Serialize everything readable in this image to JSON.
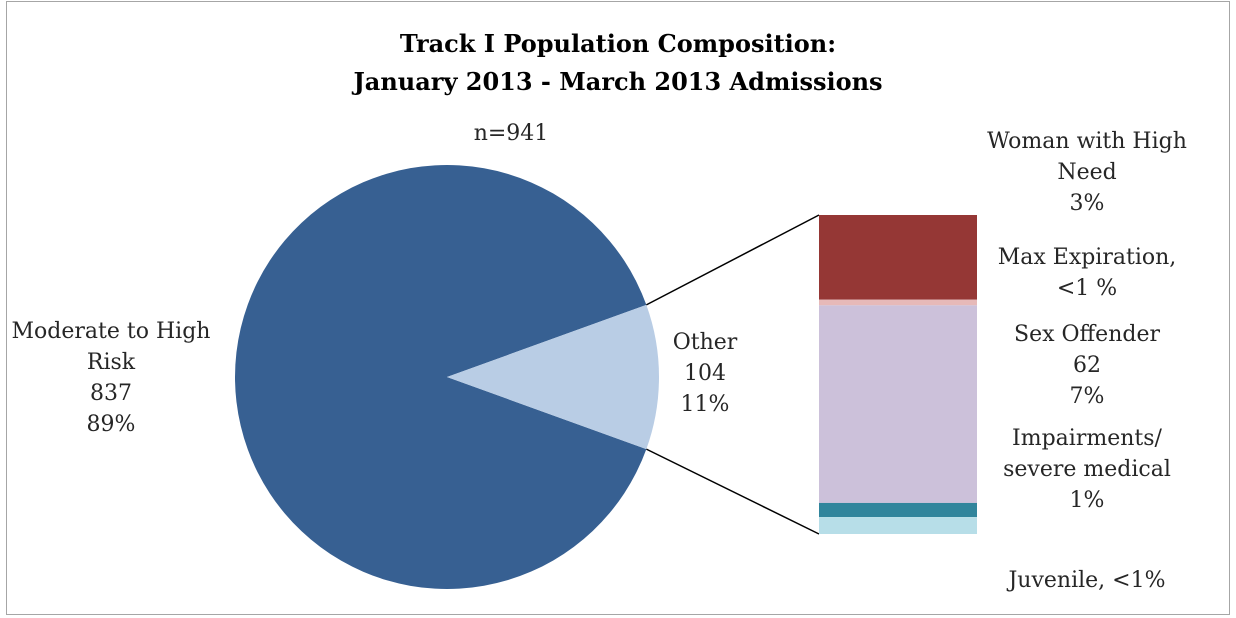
{
  "chart_data": {
    "type": "pie",
    "title": "Track I Population Composition:",
    "subtitle": "January 2013 - March 2013 Admissions",
    "annotation": "n=941",
    "pie": {
      "slices": [
        {
          "key": "moderate",
          "lines": [
            "Moderate to High",
            "Risk",
            "837",
            "89%"
          ],
          "value": 837,
          "percent": 89,
          "color": "#376092"
        },
        {
          "key": "other",
          "lines": [
            "Other",
            "104",
            "11%"
          ],
          "value": 104,
          "percent": 11,
          "color": "#b9cde5"
        }
      ]
    },
    "breakdown": {
      "parent": "other",
      "segments": [
        {
          "key": "woman",
          "lines": [
            "Woman with High",
            "Need",
            "3%"
          ],
          "percent": 3,
          "color": "#953735"
        },
        {
          "key": "max",
          "lines": [
            "Max Expiration,",
            "<1 %"
          ],
          "percent": 0.2,
          "color": "#e6b9b8"
        },
        {
          "key": "sex",
          "lines": [
            "Sex Offender",
            "62",
            "7%"
          ],
          "value": 62,
          "percent": 7,
          "color": "#ccc1da"
        },
        {
          "key": "impair",
          "lines": [
            "Impairments/",
            "severe medical",
            "1%"
          ],
          "percent": 0.5,
          "color": "#31859c"
        },
        {
          "key": "juvenile",
          "lines": [
            "Juvenile, <1%"
          ],
          "percent": 0.6,
          "color": "#b7dee8"
        }
      ]
    }
  }
}
